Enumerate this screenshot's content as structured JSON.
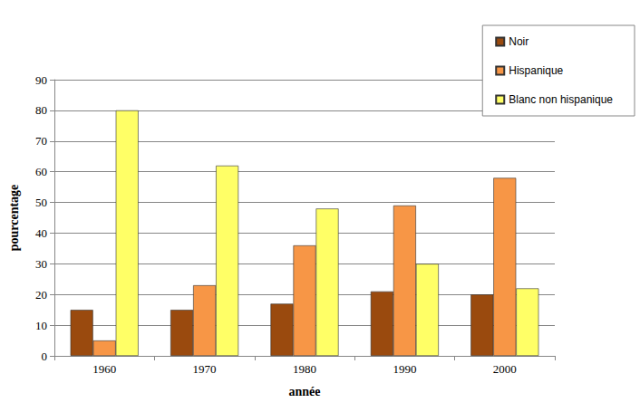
{
  "chart_data": {
    "type": "bar",
    "x_label": "année",
    "y_label": "pourcentage",
    "categories": [
      "1960",
      "1970",
      "1980",
      "1990",
      "2000"
    ],
    "series": [
      {
        "name": "Noir",
        "color": "#9a4a0e",
        "values": [
          15,
          15,
          17,
          21,
          20
        ]
      },
      {
        "name": "Hispanique",
        "color": "#f79646",
        "values": [
          5,
          23,
          36,
          49,
          58
        ]
      },
      {
        "name": "Blanc non hispanique",
        "color": "#ffff66",
        "values": [
          80,
          62,
          48,
          30,
          22
        ]
      }
    ],
    "ylim": [
      0,
      90
    ],
    "yticks": [
      0,
      10,
      20,
      30,
      40,
      50,
      60,
      70,
      80,
      90
    ],
    "grid": true,
    "legend": "upper right"
  }
}
